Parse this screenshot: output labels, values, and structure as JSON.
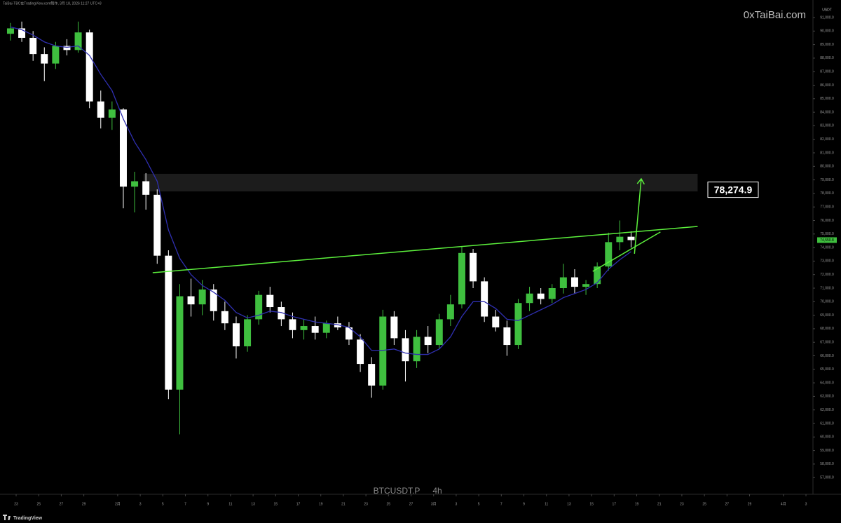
{
  "chart_data": {
    "type": "candlestick",
    "credit": "TaiBai-TBC在TradingView.com制作, 3月 18, 2026 11:27 UTC+8",
    "watermark": "0xTaiBai.com",
    "symbol": "BTCUSDT.P",
    "interval": "4h",
    "currency": "USDT",
    "brand": "TradingView",
    "up_color": "#3fbf3f",
    "down_color": "#ffffff",
    "x": [
      -0.5,
      0.5,
      1.5,
      2.5,
      3.5,
      4.5,
      5.5,
      6.5,
      7.5,
      8.5,
      9.5,
      10.5,
      11.5,
      12.5,
      13.5,
      14.5,
      15.5,
      16.5,
      17.5,
      18.5,
      19.5,
      20.5,
      21.5,
      22.5,
      23.5,
      24.5,
      25.5,
      26.5,
      27.5,
      28.5,
      29.5,
      30.5,
      31.5,
      32.5,
      33.5,
      34.5,
      35.5,
      36.5,
      37.5,
      38.5,
      39.5,
      40.5,
      41.5,
      42.5,
      43.5,
      44.5,
      45.5,
      46.5,
      47.5,
      48.5,
      49.5,
      50.5,
      51.5,
      52.5,
      53.5,
      54.5
    ],
    "ohlc": {
      "open": [
        89800,
        90200,
        89500,
        88300,
        87600,
        88900,
        88600,
        89900,
        84800,
        83600,
        84200,
        78500,
        78900,
        77900,
        73400,
        63500,
        70400,
        69800,
        70900,
        69300,
        68400,
        66700,
        68700,
        70500,
        69600,
        68700,
        67900,
        68200,
        67700,
        68400,
        68100,
        67200,
        65400,
        63800,
        68900,
        67300,
        65600,
        67400,
        66800,
        68700,
        69800,
        73600,
        71500,
        68900,
        68100,
        66800,
        69900,
        70600,
        70200,
        71000,
        71800,
        71100,
        71300,
        72600,
        74400,
        74800
      ],
      "high": [
        90600,
        90700,
        90000,
        88800,
        89200,
        89400,
        90700,
        90100,
        85600,
        84800,
        84300,
        79600,
        79500,
        78300,
        73800,
        71300,
        71700,
        71600,
        71300,
        70000,
        68900,
        69000,
        70800,
        71100,
        70000,
        69200,
        68700,
        68900,
        68600,
        68900,
        68500,
        67600,
        65900,
        69400,
        69300,
        67900,
        67900,
        68200,
        69100,
        70500,
        74100,
        73900,
        71800,
        69400,
        68600,
        70200,
        71100,
        71000,
        71300,
        72800,
        72400,
        71600,
        72900,
        75100,
        76000,
        75200
      ],
      "low": [
        89300,
        89200,
        87800,
        86300,
        87200,
        88200,
        88400,
        84300,
        82800,
        82700,
        76900,
        76600,
        76800,
        72800,
        62800,
        60200,
        68900,
        69000,
        68600,
        67900,
        65800,
        66300,
        68300,
        69200,
        68200,
        67300,
        67200,
        67200,
        67300,
        67900,
        66800,
        64800,
        62900,
        63500,
        66800,
        64100,
        65100,
        66200,
        66500,
        68200,
        69500,
        71000,
        68500,
        67800,
        66000,
        66500,
        69300,
        69800,
        69900,
        70600,
        70600,
        70500,
        71000,
        72300,
        73800,
        74000
      ],
      "close": [
        90200,
        89500,
        88300,
        87600,
        88900,
        88600,
        89900,
        84800,
        83600,
        84200,
        78500,
        78900,
        77900,
        73400,
        63500,
        70400,
        69800,
        70900,
        69300,
        68400,
        66700,
        68700,
        70500,
        69600,
        68700,
        67900,
        68200,
        67700,
        68400,
        68100,
        67200,
        65400,
        63800,
        68900,
        67300,
        65600,
        67400,
        66800,
        68700,
        69800,
        73600,
        71500,
        68900,
        68100,
        66800,
        69900,
        70600,
        70200,
        71000,
        71800,
        71100,
        71300,
        72600,
        74400,
        74800,
        74550.8
      ]
    },
    "ema": {
      "color": "#2f2fb0",
      "values": [
        90300,
        90100,
        89700,
        89200,
        88900,
        88800,
        88900,
        88200,
        86800,
        85600,
        83500,
        81800,
        80500,
        78900,
        75300,
        73200,
        72000,
        71200,
        70700,
        70100,
        69200,
        68800,
        69000,
        69300,
        69200,
        68900,
        68700,
        68500,
        68400,
        68300,
        68100,
        67400,
        66400,
        66400,
        66500,
        66200,
        66100,
        66100,
        66500,
        67400,
        68900,
        70000,
        70000,
        69500,
        68700,
        68600,
        69000,
        69400,
        69800,
        70300,
        70600,
        70900,
        71400,
        72400,
        73100,
        73700
      ]
    },
    "drawings": {
      "color": "#5cf03c",
      "zone": {
        "x": [
          11.3,
          60.4
        ],
        "y": [
          78150,
          79450
        ]
      },
      "resistance": {
        "x": [
          12.1,
          60.4
        ],
        "y": [
          72140,
          75560
        ]
      },
      "support": {
        "x": [
          51.1,
          57.1
        ],
        "y": [
          72240,
          75150
        ]
      },
      "arrow": {
        "x": [
          54.8,
          55.4
        ],
        "y": [
          73540,
          79080
        ]
      }
    },
    "target_label": {
      "value": 78274.9,
      "label": "78,274.9"
    },
    "last_price": {
      "value": 74550.8,
      "label": "74,550.8"
    },
    "xlim": [
      -1.43,
      70.62
    ],
    "ylim": [
      56544,
      91881
    ],
    "xticks": [
      {
        "value": 0,
        "label": "23"
      },
      {
        "value": 2,
        "label": "25"
      },
      {
        "value": 4,
        "label": "27"
      },
      {
        "value": 6,
        "label": "29"
      },
      {
        "value": 9,
        "label": "2月"
      },
      {
        "value": 11,
        "label": "3"
      },
      {
        "value": 13,
        "label": "5"
      },
      {
        "value": 15,
        "label": "7"
      },
      {
        "value": 17,
        "label": "9"
      },
      {
        "value": 19,
        "label": "11"
      },
      {
        "value": 21,
        "label": "13"
      },
      {
        "value": 23,
        "label": "15"
      },
      {
        "value": 25,
        "label": "17"
      },
      {
        "value": 27,
        "label": "19"
      },
      {
        "value": 29,
        "label": "21"
      },
      {
        "value": 31,
        "label": "23"
      },
      {
        "value": 33,
        "label": "25"
      },
      {
        "value": 35,
        "label": "27"
      },
      {
        "value": 37,
        "label": "3月"
      },
      {
        "value": 39,
        "label": "3"
      },
      {
        "value": 41,
        "label": "5"
      },
      {
        "value": 43,
        "label": "7"
      },
      {
        "value": 45,
        "label": "9"
      },
      {
        "value": 47,
        "label": "11"
      },
      {
        "value": 49,
        "label": "13"
      },
      {
        "value": 51,
        "label": "15"
      },
      {
        "value": 53,
        "label": "17"
      },
      {
        "value": 55,
        "label": "19"
      },
      {
        "value": 57,
        "label": "21"
      },
      {
        "value": 59,
        "label": "23"
      },
      {
        "value": 61,
        "label": "25"
      },
      {
        "value": 63,
        "label": "27"
      },
      {
        "value": 65,
        "label": "29"
      },
      {
        "value": 68,
        "label": "4月"
      },
      {
        "value": 70,
        "label": "3"
      }
    ],
    "yticks": [
      {
        "value": 91000,
        "label": "91,000.0"
      },
      {
        "value": 90000,
        "label": "90,000.0"
      },
      {
        "value": 89000,
        "label": "89,000.0"
      },
      {
        "value": 88000,
        "label": "88,000.0"
      },
      {
        "value": 87000,
        "label": "87,000.0"
      },
      {
        "value": 86000,
        "label": "86,000.0"
      },
      {
        "value": 85000,
        "label": "85,000.0"
      },
      {
        "value": 84000,
        "label": "84,000.0"
      },
      {
        "value": 83000,
        "label": "83,000.0"
      },
      {
        "value": 82000,
        "label": "82,000.0"
      },
      {
        "value": 81000,
        "label": "81,000.0"
      },
      {
        "value": 80000,
        "label": "80,000.0"
      },
      {
        "value": 79000,
        "label": "79,000.0"
      },
      {
        "value": 78000,
        "label": "78,000.0"
      },
      {
        "value": 77000,
        "label": "77,000.0"
      },
      {
        "value": 76000,
        "label": "76,000.0"
      },
      {
        "value": 75000,
        "label": "75,000.0"
      },
      {
        "value": 74000,
        "label": "74,000.0"
      },
      {
        "value": 73000,
        "label": "73,000.0"
      },
      {
        "value": 72000,
        "label": "72,000.0"
      },
      {
        "value": 71000,
        "label": "71,000.0"
      },
      {
        "value": 70000,
        "label": "70,000.0"
      },
      {
        "value": 69000,
        "label": "69,000.0"
      },
      {
        "value": 68000,
        "label": "68,000.0"
      },
      {
        "value": 67000,
        "label": "67,000.0"
      },
      {
        "value": 66000,
        "label": "66,000.0"
      },
      {
        "value": 65000,
        "label": "65,000.0"
      },
      {
        "value": 64000,
        "label": "64,000.0"
      },
      {
        "value": 63000,
        "label": "63,000.0"
      },
      {
        "value": 62000,
        "label": "62,000.0"
      },
      {
        "value": 61000,
        "label": "61,000.0"
      },
      {
        "value": 60000,
        "label": "60,000.0"
      },
      {
        "value": 59000,
        "label": "59,000.0"
      },
      {
        "value": 58000,
        "label": "58,000.0"
      },
      {
        "value": 57000,
        "label": "57,000.0"
      }
    ]
  }
}
